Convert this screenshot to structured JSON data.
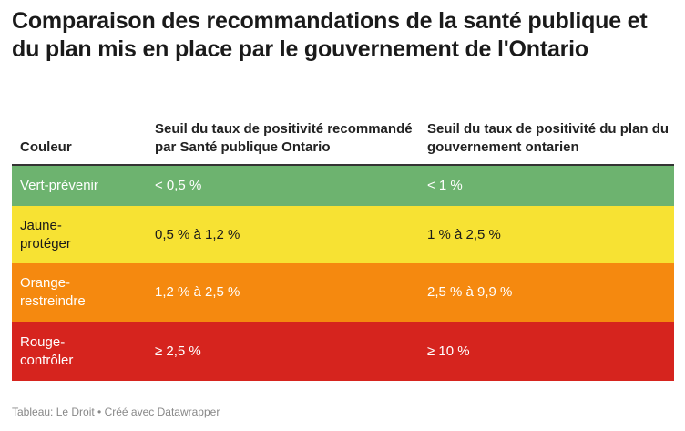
{
  "title": "Comparaison des recommandations de la santé publique et du plan mis en place par le gouvernement de l'Ontario",
  "chart_data": {
    "type": "table",
    "columns": [
      "Couleur",
      "Seuil du taux de positivité recommandé par Santé publique Ontario",
      "Seuil du taux de positivité du plan du gouvernement ontarien"
    ],
    "rows": [
      {
        "color_label": "Vert-prévenir",
        "sante_publique": "< 0,5 %",
        "gouvernement": "< 1 %",
        "bg": "#6db36f",
        "fg": "#ffffff"
      },
      {
        "color_label": "Jaune-protéger",
        "sante_publique": "0,5 % à 1,2 %",
        "gouvernement": "1 % à 2,5 %",
        "bg": "#f7e233",
        "fg": "#1a1a1a"
      },
      {
        "color_label": "Orange-restreindre",
        "sante_publique": "1,2 % à 2,5 %",
        "gouvernement": "2,5 % à 9,9 %",
        "bg": "#f5890f",
        "fg": "#ffffff"
      },
      {
        "color_label": "Rouge-contrôler",
        "sante_publique": "≥ 2,5 %",
        "gouvernement": "≥ 10 %",
        "bg": "#d6241e",
        "fg": "#ffffff"
      }
    ]
  },
  "footer": "Tableau: Le Droit • Créé avec Datawrapper"
}
